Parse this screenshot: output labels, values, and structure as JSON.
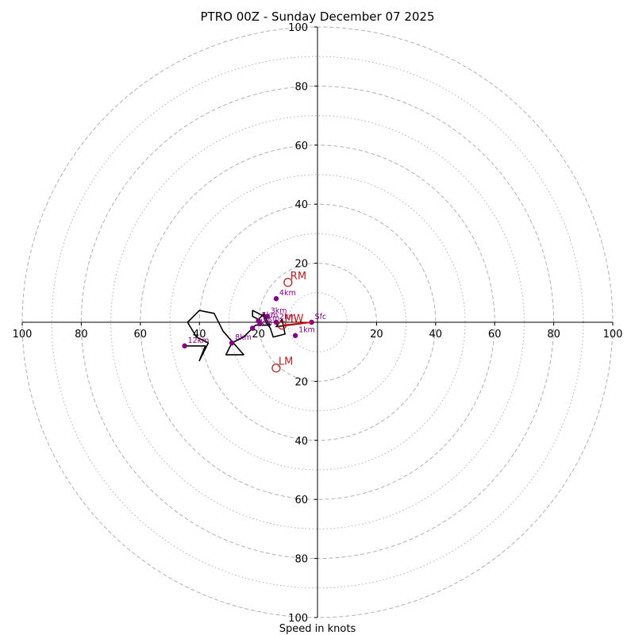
{
  "chart_data": {
    "type": "hodograph",
    "title": "PTRO 00Z - Sunday December 07 2025",
    "xlabel": "Speed in knots",
    "units": "knots",
    "max_speed": 100,
    "ring_speeds_major": [
      20,
      40,
      60,
      80,
      100
    ],
    "ring_speeds_minor": [
      10,
      30,
      50,
      70,
      90
    ],
    "tick_labels_horizontal": [
      "100",
      "80",
      "60",
      "40",
      "20",
      "20",
      "40",
      "60",
      "80",
      "100"
    ],
    "tick_labels_vertical": [
      "100",
      "80",
      "60",
      "40",
      "20",
      "20",
      "40",
      "60",
      "80",
      "100"
    ],
    "trace_u_v_knots": [
      [
        -2,
        0
      ],
      [
        -6,
        -0.5
      ],
      [
        -10,
        -1
      ],
      [
        -14,
        -1.5
      ],
      [
        -12,
        1
      ],
      [
        -11,
        -4
      ],
      [
        -15,
        -5
      ],
      [
        -16,
        -2
      ],
      [
        -18,
        1
      ],
      [
        -18,
        3
      ],
      [
        -20,
        1
      ],
      [
        -22,
        2
      ],
      [
        -22,
        4
      ],
      [
        -20,
        3
      ],
      [
        -18,
        2
      ],
      [
        -16,
        -1
      ],
      [
        -21,
        -1
      ],
      [
        -22,
        -2
      ],
      [
        -25,
        -5
      ],
      [
        -29,
        -7
      ],
      [
        -31,
        -11
      ],
      [
        -25,
        -11
      ],
      [
        -32,
        -3
      ],
      [
        -35,
        3
      ],
      [
        -40,
        4
      ],
      [
        -44,
        0
      ],
      [
        -41,
        -5
      ],
      [
        -37,
        -7
      ],
      [
        -40,
        -13
      ],
      [
        -38,
        -8
      ],
      [
        -45,
        -8
      ]
    ],
    "height_markers": [
      {
        "label": "Sfc",
        "u": -2,
        "v": 0
      },
      {
        "label": "1km",
        "u": -7.5,
        "v": -4.5
      },
      {
        "label": "2km",
        "u": -14,
        "v": 0
      },
      {
        "label": "3km",
        "u": -17,
        "v": 2
      },
      {
        "label": "4km",
        "u": -14,
        "v": 8
      },
      {
        "label": "5km",
        "u": -20,
        "v": 0.5
      },
      {
        "label": "6km",
        "u": -19.5,
        "v": -0.5
      },
      {
        "label": "7km",
        "u": -22,
        "v": -2
      },
      {
        "label": "8km",
        "u": -29,
        "v": -7
      },
      {
        "label": "12km",
        "u": -45,
        "v": -8
      }
    ],
    "storm_motion": [
      {
        "label": "RM",
        "u": -10,
        "v": 13.5
      },
      {
        "label": "LM",
        "u": -14,
        "v": -15.5
      },
      {
        "label": "MW",
        "u": -12,
        "v": -1
      }
    ],
    "storm_motion_vector": {
      "from": [
        -2,
        0
      ],
      "to": [
        -12,
        -1
      ]
    }
  },
  "colors": {
    "rings": "#b0b0b0",
    "trace": "#000000",
    "markers": "#800080",
    "storm_motion": "#b22222",
    "vector": "#ff0000"
  }
}
